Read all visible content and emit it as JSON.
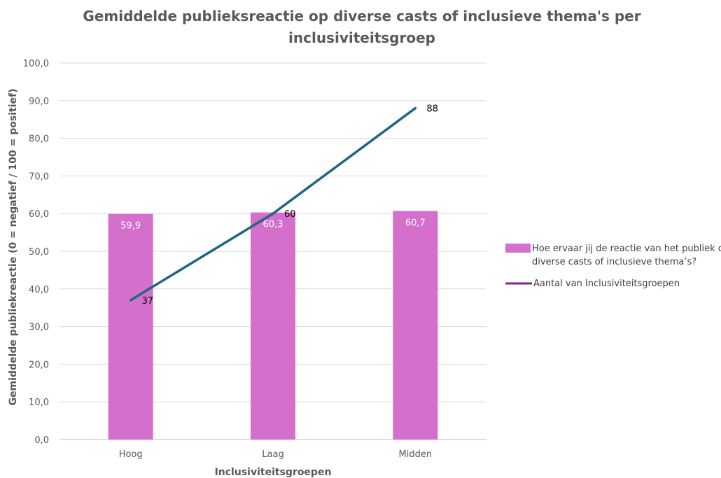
{
  "chart_data": {
    "type": "bar",
    "title_line1": "Gemiddelde publieksreactie op diverse casts of inclusieve thema's per",
    "title_line2": "inclusiviteitsgroep",
    "xlabel": "Inclusiviteitsgroepen",
    "ylabel": "Gemiddelde publiekreactie (0 = negatief / 100 = positief)",
    "ylim": [
      0,
      100
    ],
    "yticks": [
      "0,0",
      "10,0",
      "20,0",
      "30,0",
      "40,0",
      "50,0",
      "60,0",
      "70,0",
      "80,0",
      "90,0",
      "100,0"
    ],
    "categories": [
      "Hoog",
      "Laag",
      "Midden"
    ],
    "grid": true,
    "legend_position": "right",
    "series": [
      {
        "name_line1": "Hoe ervaar jij de reactie van het publiek op",
        "name_line2": "diverse casts of inclusieve thema’s?",
        "kind": "bar",
        "color": "#d56fcc",
        "values": [
          59.9,
          60.3,
          60.7
        ],
        "labels": [
          "59,9",
          "60,3",
          "60,7"
        ]
      },
      {
        "name": "Aantal van Inclusiviteitsgroepen",
        "kind": "line",
        "color": "#1f6680",
        "legend_color": "#7b2a7e",
        "values": [
          37,
          60,
          88
        ],
        "labels": [
          "37",
          "60",
          "88"
        ]
      }
    ]
  }
}
